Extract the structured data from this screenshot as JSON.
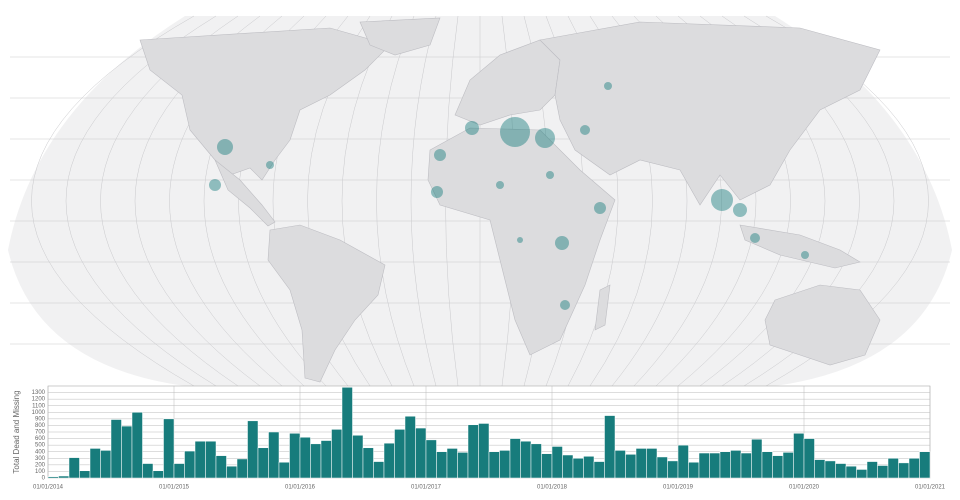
{
  "chart_data": {
    "type": "bar",
    "y_label": "Total Dead and Missing",
    "color": "#177c7c",
    "values": [
      20,
      30,
      310,
      110,
      450,
      420,
      890,
      790,
      1000,
      220,
      110,
      900,
      220,
      410,
      560,
      560,
      340,
      180,
      290,
      870,
      460,
      700,
      240,
      680,
      620,
      520,
      570,
      740,
      1380,
      650,
      460,
      250,
      530,
      740,
      940,
      760,
      580,
      400,
      450,
      390,
      810,
      830,
      400,
      420,
      600,
      560,
      520,
      370,
      480,
      350,
      300,
      330,
      250,
      950,
      420,
      360,
      450,
      450,
      320,
      260,
      500,
      240,
      380,
      380,
      400,
      420,
      380,
      590,
      400,
      340,
      390,
      680,
      600,
      280,
      260,
      220,
      180,
      130,
      250,
      190,
      300,
      230,
      300,
      400
    ],
    "xlim": [
      0,
      84
    ],
    "xticks": [
      {
        "value": 0,
        "label": "01/01/2014"
      },
      {
        "value": 12,
        "label": "01/01/2015"
      },
      {
        "value": 24,
        "label": "01/01/2016"
      },
      {
        "value": 36,
        "label": "01/01/2017"
      },
      {
        "value": 48,
        "label": "01/01/2018"
      },
      {
        "value": 60,
        "label": "01/01/2019"
      },
      {
        "value": 72,
        "label": "01/01/2020"
      },
      {
        "value": 84,
        "label": "01/01/2021"
      }
    ],
    "ylim": [
      0,
      1400
    ],
    "yticks": [
      0,
      100,
      200,
      300,
      400,
      500,
      600,
      700,
      800,
      900,
      1000,
      1100,
      1200,
      1300
    ],
    "grid": true
  }
}
